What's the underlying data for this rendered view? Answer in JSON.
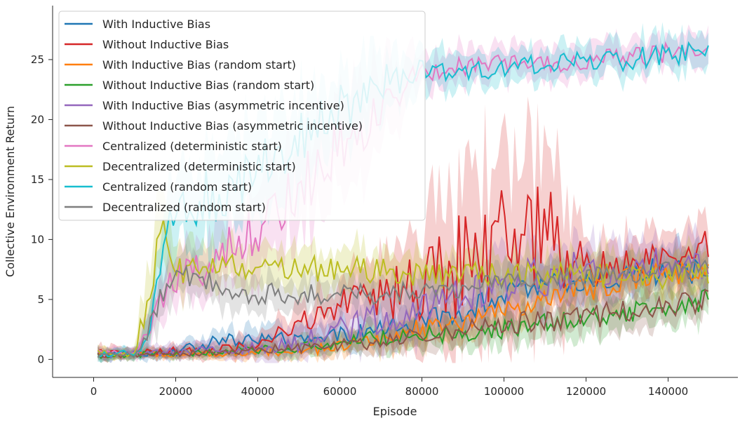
{
  "chart_data": {
    "type": "line",
    "xlabel": "Episode",
    "ylabel": "Collective Environment Return",
    "xlim": [
      -10000,
      157000
    ],
    "ylim": [
      -1.5,
      29.5
    ],
    "xticks": [
      0,
      20000,
      40000,
      60000,
      80000,
      100000,
      120000,
      140000
    ],
    "yticks": [
      0,
      5,
      10,
      15,
      20,
      25
    ],
    "legend": "top-left",
    "grid": false,
    "series": [
      {
        "name": "With Inductive Bias",
        "color": "#1f77b4",
        "x": [
          1000,
          10000,
          20000,
          30000,
          40000,
          50000,
          60000,
          70000,
          80000,
          90000,
          100000,
          110000,
          120000,
          130000,
          140000,
          150000
        ],
        "values": [
          0.4,
          0.5,
          0.6,
          1.5,
          1.8,
          1.4,
          2.0,
          2.5,
          3.2,
          4.0,
          5.5,
          6.0,
          6.5,
          7.0,
          7.5,
          7.0
        ],
        "band": [
          0.8,
          0.6,
          0.8,
          1.2,
          1.5,
          1.5,
          1.6,
          1.8,
          2.0,
          2.0,
          2.2,
          2.2,
          2.5,
          2.5,
          2.5,
          2.5
        ]
      },
      {
        "name": "Without Inductive Bias",
        "color": "#d62728",
        "x": [
          1000,
          10000,
          20000,
          30000,
          40000,
          50000,
          60000,
          70000,
          80000,
          90000,
          100000,
          110000,
          115000,
          120000,
          130000,
          140000,
          150000
        ],
        "values": [
          0.5,
          0.5,
          0.7,
          0.8,
          1.2,
          3.0,
          4.5,
          5.0,
          6.5,
          8.0,
          10.0,
          10.5,
          9.0,
          7.5,
          8.0,
          9.0,
          9.5
        ],
        "band": [
          0.8,
          0.6,
          0.8,
          1.0,
          1.2,
          2.0,
          3.0,
          4.0,
          8.0,
          10.0,
          10.0,
          9.0,
          8.0,
          3.0,
          3.0,
          3.0,
          3.0
        ]
      },
      {
        "name": "With Inductive Bias (random start)",
        "color": "#ff7f0e",
        "x": [
          1000,
          10000,
          20000,
          30000,
          40000,
          50000,
          60000,
          70000,
          80000,
          90000,
          100000,
          110000,
          120000,
          130000,
          140000,
          150000
        ],
        "values": [
          0.4,
          0.4,
          0.5,
          0.5,
          0.6,
          0.8,
          1.0,
          1.8,
          2.5,
          3.0,
          4.0,
          5.0,
          6.0,
          6.5,
          7.0,
          7.2
        ],
        "band": [
          0.6,
          0.5,
          0.6,
          0.6,
          0.8,
          1.0,
          1.2,
          1.6,
          2.0,
          2.0,
          2.2,
          2.2,
          2.5,
          2.5,
          2.5,
          2.5
        ]
      },
      {
        "name": "Without Inductive Bias (random start)",
        "color": "#2ca02c",
        "x": [
          1000,
          10000,
          20000,
          30000,
          40000,
          50000,
          60000,
          70000,
          80000,
          90000,
          100000,
          110000,
          120000,
          130000,
          140000,
          150000
        ],
        "values": [
          0.3,
          0.4,
          0.5,
          0.6,
          0.8,
          1.0,
          1.5,
          1.8,
          2.0,
          2.2,
          2.5,
          3.0,
          3.5,
          4.0,
          4.5,
          5.0
        ],
        "band": [
          0.6,
          0.5,
          0.6,
          0.6,
          0.8,
          1.0,
          1.2,
          1.5,
          1.6,
          1.6,
          1.8,
          2.0,
          2.0,
          2.0,
          2.2,
          2.2
        ]
      },
      {
        "name": "With Inductive Bias (asymmetric incentive)",
        "color": "#9467bd",
        "x": [
          1000,
          10000,
          20000,
          30000,
          40000,
          50000,
          60000,
          70000,
          80000,
          90000,
          100000,
          110000,
          120000,
          130000,
          140000,
          150000
        ],
        "values": [
          0.4,
          0.5,
          0.6,
          0.8,
          1.0,
          1.5,
          2.5,
          3.5,
          4.5,
          5.5,
          6.5,
          7.0,
          7.5,
          8.0,
          8.0,
          8.0
        ],
        "band": [
          0.7,
          0.6,
          0.8,
          1.0,
          1.5,
          2.0,
          2.5,
          3.0,
          3.5,
          3.5,
          4.0,
          4.0,
          3.5,
          3.5,
          3.0,
          3.0
        ]
      },
      {
        "name": "Without Inductive Bias (asymmetric incentive)",
        "color": "#8c564b",
        "x": [
          1000,
          10000,
          20000,
          30000,
          40000,
          50000,
          60000,
          70000,
          80000,
          90000,
          100000,
          110000,
          120000,
          130000,
          140000,
          150000
        ],
        "values": [
          0.3,
          0.4,
          0.5,
          0.6,
          0.8,
          1.0,
          1.2,
          1.5,
          2.0,
          2.5,
          3.0,
          3.2,
          3.5,
          4.0,
          4.5,
          5.0
        ],
        "band": [
          0.6,
          0.5,
          0.6,
          0.6,
          0.8,
          1.0,
          1.2,
          1.4,
          1.6,
          1.8,
          2.0,
          2.0,
          2.2,
          2.2,
          2.2,
          2.2
        ]
      },
      {
        "name": "Centralized (deterministic start)",
        "color": "#e377c2",
        "x": [
          1000,
          10000,
          13000,
          16000,
          20000,
          25000,
          30000,
          40000,
          50000,
          60000,
          70000,
          80000,
          90000,
          100000,
          110000,
          120000,
          130000,
          140000,
          150000
        ],
        "values": [
          0.5,
          0.5,
          2.0,
          5.0,
          6.5,
          7.5,
          8.5,
          11.0,
          14.0,
          17.5,
          21.0,
          24.0,
          24.5,
          24.5,
          24.8,
          25.0,
          25.0,
          25.5,
          26.0
        ],
        "band": [
          0.6,
          0.6,
          2.0,
          3.0,
          3.0,
          3.5,
          4.0,
          5.0,
          6.0,
          6.0,
          5.0,
          2.0,
          2.0,
          2.0,
          2.0,
          2.0,
          2.0,
          2.0,
          2.0
        ]
      },
      {
        "name": "Decentralized (deterministic start)",
        "color": "#bcbd22",
        "x": [
          1000,
          10000,
          13000,
          16000,
          20000,
          30000,
          40000,
          50000,
          60000,
          70000,
          80000,
          90000,
          100000,
          110000,
          120000,
          130000,
          140000,
          150000
        ],
        "values": [
          0.5,
          0.5,
          5.0,
          11.0,
          7.5,
          7.5,
          8.0,
          7.5,
          7.5,
          7.5,
          7.0,
          7.0,
          7.0,
          7.0,
          7.0,
          7.0,
          7.0,
          7.0
        ],
        "band": [
          0.6,
          0.6,
          4.0,
          5.0,
          3.0,
          2.5,
          2.5,
          2.5,
          2.5,
          2.5,
          2.5,
          2.5,
          2.5,
          2.5,
          2.5,
          2.5,
          2.5,
          2.5
        ]
      },
      {
        "name": "Centralized (random start)",
        "color": "#17becf",
        "x": [
          1000,
          10000,
          13000,
          16000,
          20000,
          30000,
          40000,
          50000,
          60000,
          70000,
          80000,
          90000,
          100000,
          110000,
          120000,
          130000,
          140000,
          150000
        ],
        "values": [
          0.5,
          0.5,
          2.0,
          8.0,
          12.0,
          14.0,
          16.0,
          18.5,
          21.0,
          23.0,
          24.0,
          24.0,
          24.5,
          24.5,
          24.8,
          25.0,
          25.5,
          25.5
        ],
        "band": [
          0.6,
          0.6,
          2.0,
          4.0,
          5.0,
          6.0,
          6.0,
          6.0,
          5.0,
          4.0,
          2.5,
          2.0,
          2.0,
          2.0,
          2.0,
          2.0,
          2.0,
          2.0
        ]
      },
      {
        "name": "Decentralized (random start)",
        "color": "#7f7f7f",
        "x": [
          1000,
          10000,
          13000,
          16000,
          20000,
          30000,
          40000,
          50000,
          60000,
          70000,
          80000,
          90000,
          100000,
          110000,
          120000,
          130000,
          140000,
          150000
        ],
        "values": [
          0.4,
          0.4,
          2.0,
          4.5,
          7.0,
          6.0,
          5.5,
          5.5,
          5.5,
          5.5,
          6.0,
          6.0,
          6.5,
          6.5,
          7.0,
          7.0,
          7.5,
          7.5
        ],
        "band": [
          0.6,
          0.6,
          2.0,
          3.0,
          2.5,
          2.5,
          2.0,
          2.0,
          2.0,
          2.0,
          2.0,
          2.0,
          2.0,
          2.0,
          2.0,
          2.0,
          2.0,
          2.0
        ]
      }
    ]
  }
}
